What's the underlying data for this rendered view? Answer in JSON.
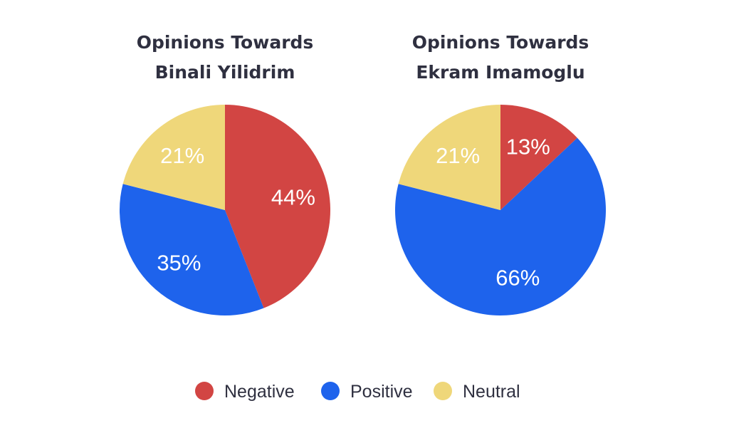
{
  "chart_data": [
    {
      "type": "pie",
      "title_lines": [
        "Opinions Towards",
        "Binali Yilidrim"
      ],
      "slices": [
        {
          "name": "Negative",
          "value": 44,
          "label": "44%",
          "color": "#d24543"
        },
        {
          "name": "Positive",
          "value": 35,
          "label": "35%",
          "color": "#1e63ec"
        },
        {
          "name": "Neutral",
          "value": 21,
          "label": "21%",
          "color": "#efd77a"
        }
      ]
    },
    {
      "type": "pie",
      "title_lines": [
        "Opinions Towards",
        "Ekram Imamoglu"
      ],
      "slices": [
        {
          "name": "Negative",
          "value": 13,
          "label": "13%",
          "color": "#d24543"
        },
        {
          "name": "Positive",
          "value": 66,
          "label": "66%",
          "color": "#1e63ec"
        },
        {
          "name": "Neutral",
          "value": 21,
          "label": "21%",
          "color": "#efd77a"
        }
      ]
    }
  ],
  "legend": {
    "placement": "bottom-center",
    "items": [
      {
        "label": "Negative",
        "color": "#d24543"
      },
      {
        "label": "Positive",
        "color": "#1e63ec"
      },
      {
        "label": "Neutral",
        "color": "#efd77a"
      }
    ]
  }
}
